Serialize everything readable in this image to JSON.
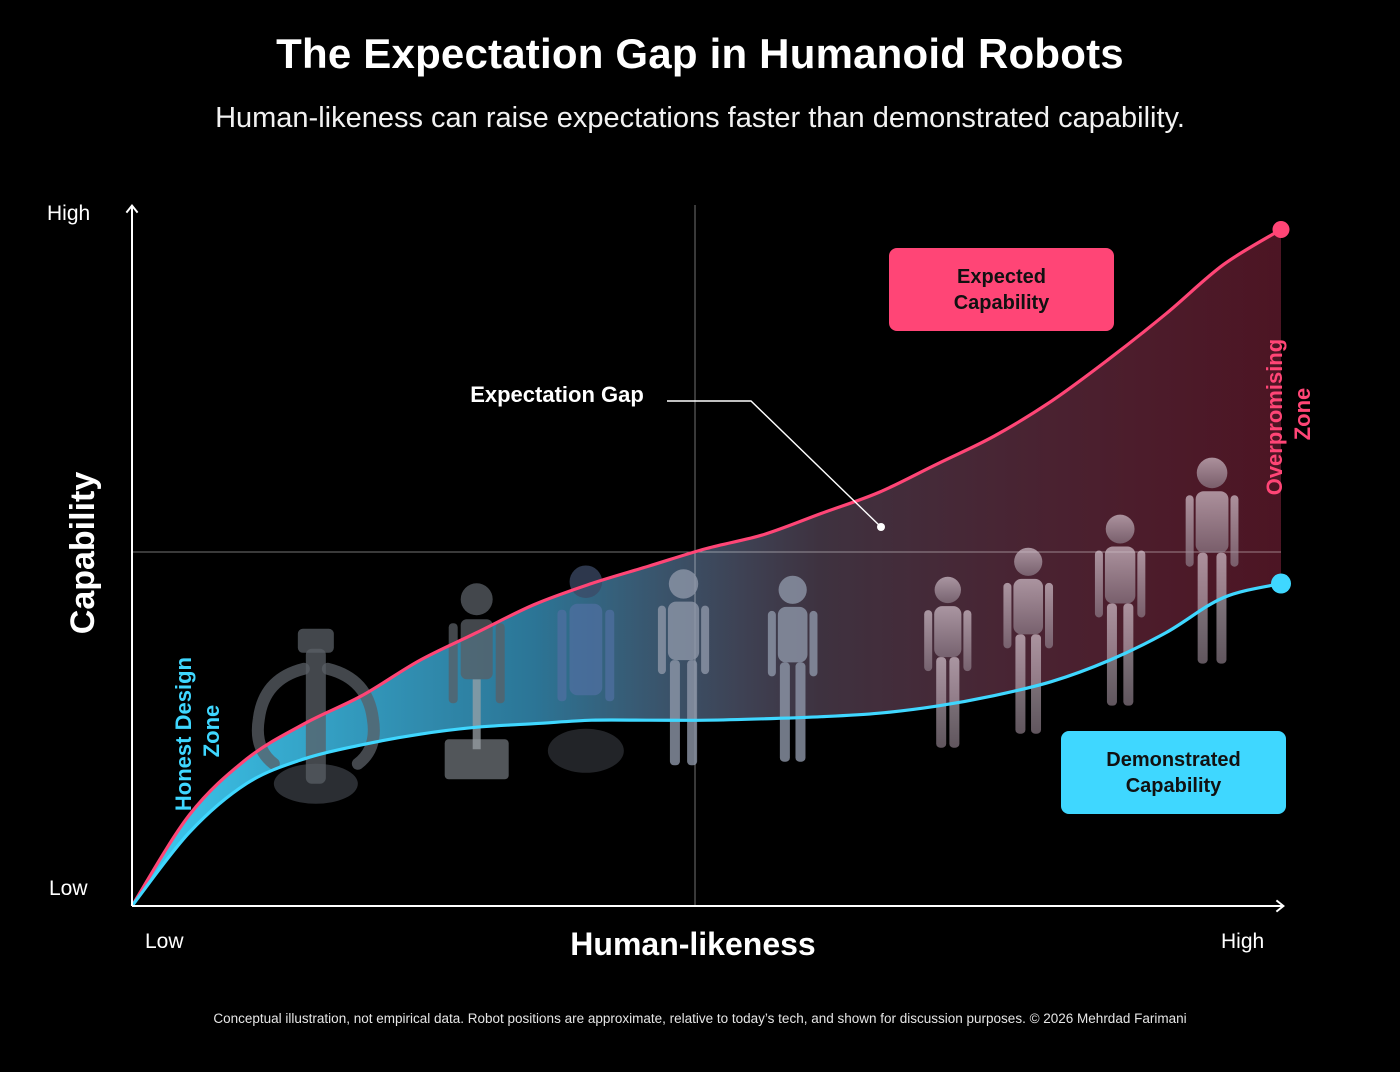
{
  "title": "The Expectation Gap in Humanoid Robots",
  "subtitle": "Human-likeness can raise expectations faster than demonstrated capability.",
  "footnote": "Conceptual illustration, not empirical data. Robot positions are approximate, relative to today’s tech, and shown for discussion purposes. © 2026 Mehrdad Farimani",
  "colors": {
    "background": "#000000",
    "expected": "#ff4576",
    "demonstrated": "#3fd7ff",
    "axis": "#ffffff",
    "gap_fill_left": "#3fd7ff",
    "gap_fill_right": "#ff4576"
  },
  "chart_data": {
    "type": "line",
    "xlabel": "Human-likeness",
    "ylabel": "Capability",
    "xlim": [
      0,
      100
    ],
    "ylim": [
      0,
      100
    ],
    "x_ticks": [
      "Low",
      "High"
    ],
    "y_ticks": [
      "Low",
      "High"
    ],
    "grid": false,
    "reference_lines": {
      "x": 49,
      "y": 50.5
    },
    "series": [
      {
        "name": "Expected Capability",
        "color": "#ff4576",
        "x": [
          0,
          5,
          10,
          15,
          20,
          25,
          30,
          35,
          40,
          45,
          50,
          55,
          60,
          65,
          70,
          75,
          80,
          85,
          90,
          95,
          100
        ],
        "y": [
          0,
          13,
          21,
          26,
          30,
          35,
          39,
          43,
          46,
          48.5,
          51,
          53,
          56,
          59,
          63,
          67,
          72,
          78,
          84.5,
          91.5,
          96.5
        ]
      },
      {
        "name": "Demonstrated Capability",
        "color": "#3fd7ff",
        "x": [
          0,
          5,
          10,
          15,
          20,
          25,
          30,
          35,
          40,
          45,
          50,
          55,
          60,
          65,
          70,
          75,
          80,
          85,
          90,
          95,
          100
        ],
        "y": [
          0,
          10.5,
          17.5,
          21,
          23,
          24.5,
          25.5,
          26,
          26.5,
          26.5,
          26.5,
          26.7,
          27,
          27.5,
          28.5,
          30,
          32,
          35,
          39,
          44,
          46
        ]
      }
    ],
    "legend": [
      "Expected Capability",
      "Demonstrated Capability"
    ],
    "annotations": [
      "Expectation Gap",
      "Honest Design Zone",
      "Overpromising Zone"
    ],
    "robots": [
      {
        "name": "robot-arm-mobile-base",
        "x": 16,
        "y": 21
      },
      {
        "name": "robot-torso-pedestal",
        "x": 30,
        "y": 24.5
      },
      {
        "name": "robot-wheeled-humanoid",
        "x": 39.5,
        "y": 26
      },
      {
        "name": "robot-bipedal-1",
        "x": 48,
        "y": 26.5
      },
      {
        "name": "robot-bipedal-2",
        "x": 57.5,
        "y": 27
      },
      {
        "name": "robot-bipedal-3",
        "x": 71,
        "y": 29
      },
      {
        "name": "robot-bipedal-4",
        "x": 78,
        "y": 31
      },
      {
        "name": "robot-humanlike-1",
        "x": 86,
        "y": 35
      },
      {
        "name": "robot-humanlike-2",
        "x": 94,
        "y": 41
      }
    ]
  },
  "legend_labels": {
    "expected": "Expected\nCapability",
    "demonstrated": "Demonstrated\nCapability"
  },
  "annotations": {
    "gap": "Expectation Gap",
    "honest": [
      "Honest Design",
      "Zone"
    ],
    "overpromising": [
      "Overpromising",
      "Zone"
    ]
  }
}
